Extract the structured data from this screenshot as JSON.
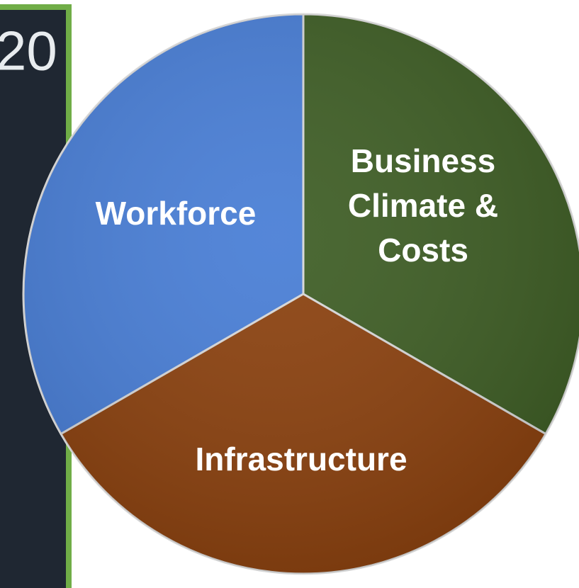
{
  "side_panel": {
    "text": "20"
  },
  "segments": [
    {
      "lines": [
        "Workforce"
      ]
    },
    {
      "lines": [
        "Business",
        "Climate &",
        "Costs"
      ]
    },
    {
      "lines": [
        "Infrastructure"
      ]
    }
  ]
}
